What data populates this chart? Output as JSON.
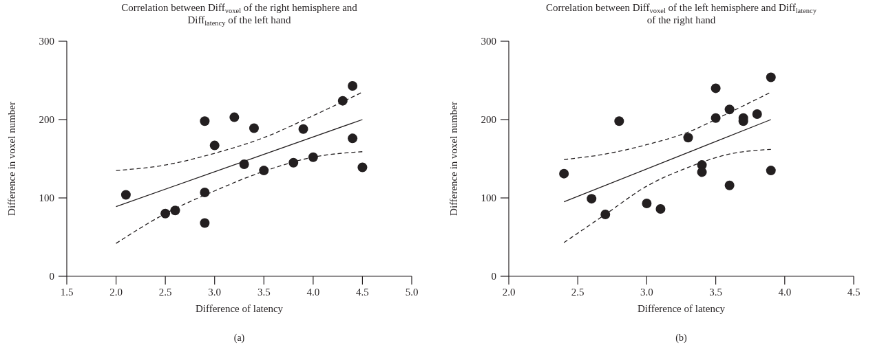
{
  "chart_data": [
    {
      "type": "scatter",
      "title": "Correlation between Diff$_{voxel}$ of the right hemisphere and Diff$_{latency}$ of the left hand",
      "xlabel": "Difference of latency",
      "ylabel": "Difference in voxel number",
      "annotations": [
        "(a)"
      ],
      "xlim": [
        1.5,
        5.0
      ],
      "xticks": [
        {
          "value": 1.5,
          "label": "1.5"
        },
        {
          "value": 2.0,
          "label": "2.0"
        },
        {
          "value": 2.5,
          "label": "2.5"
        },
        {
          "value": 3.0,
          "label": "3.0"
        },
        {
          "value": 3.5,
          "label": "3.5"
        },
        {
          "value": 4.0,
          "label": "4.0"
        },
        {
          "value": 4.5,
          "label": "4.5"
        },
        {
          "value": 5.0,
          "label": "5.0"
        }
      ],
      "ylim": [
        0,
        300
      ],
      "yticks": [
        0,
        100,
        200,
        300
      ],
      "grid": false,
      "series": [
        {
          "color": "#231f20",
          "marker": "circle",
          "x": [
            2.1,
            2.5,
            2.6,
            2.9,
            2.9,
            2.9,
            3.0,
            3.2,
            3.3,
            3.4,
            3.5,
            3.8,
            3.9,
            4.0,
            4.3,
            4.4,
            4.4,
            4.5
          ],
          "values": [
            104,
            80,
            84,
            198,
            107,
            68,
            167,
            203,
            143,
            189,
            135,
            145,
            188,
            152,
            224,
            243,
            176,
            139
          ]
        },
        {
          "type": "line",
          "color": "#231f20",
          "marker": "none",
          "line_style": "solid",
          "x": [
            2.0,
            4.5
          ],
          "values": [
            89,
            200
          ]
        },
        {
          "type": "line",
          "color": "#231f20",
          "marker": "none",
          "line_style": "dashed",
          "x": [
            2.0,
            2.5,
            3.0,
            3.5,
            4.0,
            4.5
          ],
          "values": [
            135,
            142,
            157,
            177,
            205,
            235
          ]
        },
        {
          "type": "line",
          "color": "#231f20",
          "marker": "none",
          "line_style": "dashed",
          "x": [
            2.0,
            2.5,
            3.0,
            3.5,
            4.0,
            4.5
          ],
          "values": [
            42,
            80,
            109,
            134,
            152,
            159
          ]
        }
      ]
    },
    {
      "type": "scatter",
      "title": "Correlation between Diff$_{voxel}$ of the left hemisphere and Diff$_{latency}$ of the right hand",
      "xlabel": "Difference of latency",
      "ylabel": "Difference in voxel number",
      "annotations": [
        "(b)"
      ],
      "xlim": [
        2.0,
        4.5
      ],
      "xticks": [
        {
          "value": 2.0,
          "label": "2.0"
        },
        {
          "value": 2.5,
          "label": "2.5"
        },
        {
          "value": 3.0,
          "label": "3.0"
        },
        {
          "value": 3.5,
          "label": "3.5"
        },
        {
          "value": 4.0,
          "label": "4.0"
        },
        {
          "value": 4.5,
          "label": "4.5"
        }
      ],
      "ylim": [
        0,
        300
      ],
      "yticks": [
        0,
        100,
        200,
        300
      ],
      "grid": false,
      "series": [
        {
          "color": "#231f20",
          "marker": "circle",
          "x": [
            2.4,
            2.6,
            2.7,
            2.8,
            3.0,
            3.1,
            3.3,
            3.4,
            3.4,
            3.5,
            3.5,
            3.6,
            3.6,
            3.7,
            3.7,
            3.8,
            3.9,
            3.9
          ],
          "values": [
            131,
            99,
            79,
            198,
            93,
            86,
            177,
            142,
            133,
            240,
            202,
            213,
            116,
            202,
            198,
            207,
            254,
            135
          ]
        },
        {
          "type": "line",
          "color": "#231f20",
          "marker": "none",
          "line_style": "solid",
          "x": [
            2.4,
            3.9
          ],
          "values": [
            95,
            200
          ]
        },
        {
          "type": "line",
          "color": "#231f20",
          "marker": "none",
          "line_style": "dashed",
          "x": [
            2.4,
            2.7,
            3.0,
            3.3,
            3.6,
            3.9
          ],
          "values": [
            149,
            156,
            168,
            184,
            209,
            235
          ]
        },
        {
          "type": "line",
          "color": "#231f20",
          "marker": "none",
          "line_style": "dashed",
          "x": [
            2.4,
            2.7,
            3.0,
            3.3,
            3.6,
            3.9
          ],
          "values": [
            43,
            79,
            115,
            139,
            156,
            162
          ]
        }
      ]
    }
  ]
}
